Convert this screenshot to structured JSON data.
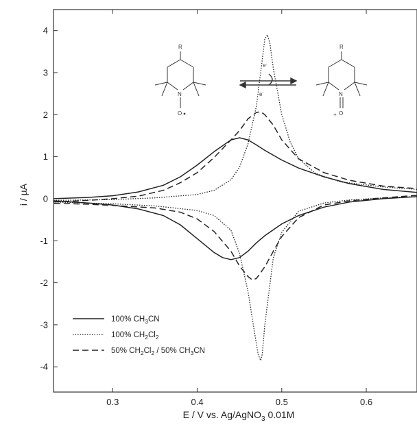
{
  "chart_data": {
    "type": "line",
    "xlabel": "E / V vs. Ag/AgNO3 0.01M",
    "ylabel": "i / µA",
    "xlim": [
      0.23,
      0.66
    ],
    "ylim": [
      -4.6,
      4.5
    ],
    "xticks": [
      0.3,
      0.4,
      0.5,
      0.6
    ],
    "xtick_labels": [
      "0.3",
      "0.4",
      "0.5",
      "0.6"
    ],
    "yticks": [
      -4,
      -3,
      -2,
      -1,
      0,
      1,
      2,
      3,
      4
    ],
    "ytick_labels": [
      "-4",
      "-3",
      "-2",
      "-1",
      "0",
      "1",
      "2",
      "3",
      "4"
    ],
    "legend_position": "bottom-left",
    "grid": false,
    "series": [
      {
        "name": "100% CH3CN",
        "line_style": "solid",
        "forward": [
          [
            0.23,
            0.0
          ],
          [
            0.27,
            0.03
          ],
          [
            0.3,
            0.07
          ],
          [
            0.33,
            0.16
          ],
          [
            0.36,
            0.32
          ],
          [
            0.38,
            0.52
          ],
          [
            0.4,
            0.8
          ],
          [
            0.42,
            1.12
          ],
          [
            0.44,
            1.4
          ],
          [
            0.45,
            1.45
          ],
          [
            0.46,
            1.4
          ],
          [
            0.47,
            1.28
          ],
          [
            0.48,
            1.15
          ],
          [
            0.5,
            0.92
          ],
          [
            0.52,
            0.73
          ],
          [
            0.55,
            0.52
          ],
          [
            0.58,
            0.36
          ],
          [
            0.62,
            0.22
          ],
          [
            0.66,
            0.15
          ]
        ],
        "reverse": [
          [
            0.66,
            0.05
          ],
          [
            0.62,
            0.0
          ],
          [
            0.58,
            -0.08
          ],
          [
            0.55,
            -0.2
          ],
          [
            0.52,
            -0.4
          ],
          [
            0.5,
            -0.6
          ],
          [
            0.48,
            -0.88
          ],
          [
            0.47,
            -1.05
          ],
          [
            0.46,
            -1.25
          ],
          [
            0.45,
            -1.4
          ],
          [
            0.44,
            -1.45
          ],
          [
            0.43,
            -1.4
          ],
          [
            0.42,
            -1.28
          ],
          [
            0.4,
            -0.95
          ],
          [
            0.38,
            -0.62
          ],
          [
            0.36,
            -0.4
          ],
          [
            0.33,
            -0.24
          ],
          [
            0.3,
            -0.15
          ],
          [
            0.27,
            -0.1
          ],
          [
            0.23,
            -0.05
          ]
        ]
      },
      {
        "name": "100% CH2Cl2",
        "line_style": "dotted",
        "forward": [
          [
            0.23,
            -0.04
          ],
          [
            0.3,
            -0.02
          ],
          [
            0.35,
            0.02
          ],
          [
            0.4,
            0.1
          ],
          [
            0.42,
            0.2
          ],
          [
            0.44,
            0.45
          ],
          [
            0.45,
            0.75
          ],
          [
            0.46,
            1.3
          ],
          [
            0.47,
            2.2
          ],
          [
            0.475,
            3.0
          ],
          [
            0.48,
            3.8
          ],
          [
            0.483,
            3.9
          ],
          [
            0.486,
            3.7
          ],
          [
            0.49,
            3.1
          ],
          [
            0.5,
            2.0
          ],
          [
            0.51,
            1.35
          ],
          [
            0.52,
            0.95
          ],
          [
            0.54,
            0.6
          ],
          [
            0.57,
            0.4
          ],
          [
            0.62,
            0.28
          ],
          [
            0.66,
            0.22
          ]
        ],
        "reverse": [
          [
            0.66,
            0.05
          ],
          [
            0.62,
            0.02
          ],
          [
            0.58,
            -0.03
          ],
          [
            0.55,
            -0.1
          ],
          [
            0.52,
            -0.3
          ],
          [
            0.5,
            -0.8
          ],
          [
            0.49,
            -1.4
          ],
          [
            0.485,
            -2.2
          ],
          [
            0.48,
            -3.0
          ],
          [
            0.477,
            -3.7
          ],
          [
            0.475,
            -3.85
          ],
          [
            0.472,
            -3.7
          ],
          [
            0.468,
            -3.2
          ],
          [
            0.46,
            -2.2
          ],
          [
            0.45,
            -1.3
          ],
          [
            0.44,
            -0.75
          ],
          [
            0.42,
            -0.4
          ],
          [
            0.4,
            -0.28
          ],
          [
            0.35,
            -0.17
          ],
          [
            0.3,
            -0.12
          ],
          [
            0.23,
            -0.08
          ]
        ]
      },
      {
        "name": "50% CH2Cl2 / 50% CH3CN",
        "line_style": "dashed",
        "forward": [
          [
            0.23,
            -0.08
          ],
          [
            0.27,
            -0.04
          ],
          [
            0.3,
            0.0
          ],
          [
            0.33,
            0.06
          ],
          [
            0.36,
            0.2
          ],
          [
            0.38,
            0.38
          ],
          [
            0.4,
            0.62
          ],
          [
            0.42,
            0.98
          ],
          [
            0.44,
            1.4
          ],
          [
            0.45,
            1.62
          ],
          [
            0.46,
            1.9
          ],
          [
            0.47,
            2.05
          ],
          [
            0.475,
            2.07
          ],
          [
            0.48,
            2.0
          ],
          [
            0.49,
            1.75
          ],
          [
            0.5,
            1.4
          ],
          [
            0.52,
            0.95
          ],
          [
            0.55,
            0.62
          ],
          [
            0.58,
            0.44
          ],
          [
            0.62,
            0.3
          ],
          [
            0.66,
            0.24
          ]
        ],
        "reverse": [
          [
            0.66,
            0.08
          ],
          [
            0.62,
            0.02
          ],
          [
            0.58,
            -0.05
          ],
          [
            0.55,
            -0.15
          ],
          [
            0.52,
            -0.45
          ],
          [
            0.5,
            -0.9
          ],
          [
            0.49,
            -1.25
          ],
          [
            0.48,
            -1.62
          ],
          [
            0.47,
            -1.9
          ],
          [
            0.465,
            -1.93
          ],
          [
            0.46,
            -1.85
          ],
          [
            0.45,
            -1.6
          ],
          [
            0.44,
            -1.25
          ],
          [
            0.42,
            -0.78
          ],
          [
            0.4,
            -0.48
          ],
          [
            0.38,
            -0.32
          ],
          [
            0.35,
            -0.22
          ],
          [
            0.3,
            -0.16
          ],
          [
            0.27,
            -0.13
          ],
          [
            0.23,
            -0.11
          ]
        ]
      }
    ],
    "legend": [
      {
        "style": "solid",
        "prefix": "100% CH",
        "sub1": "3",
        "mid": "CN",
        "sub2": "",
        "tail": ""
      },
      {
        "style": "dotted",
        "prefix": "100% CH",
        "sub1": "2",
        "mid": "Cl",
        "sub2": "2",
        "tail": ""
      },
      {
        "style": "dashed",
        "prefix": "50% CH",
        "sub1": "2",
        "mid": "Cl",
        "sub2": "2",
        "tail": " / 50% CH3CN"
      }
    ],
    "xlabel_parts": {
      "prefix": "E / V vs. Ag/AgNO",
      "sub": "3",
      "suffix": " 0.01M"
    },
    "inset": {
      "left_labels": {
        "r": "R",
        "n": "N",
        "o": "O"
      },
      "right_labels": {
        "r": "R",
        "n": "N",
        "o": "O",
        "plus": "+"
      },
      "electron_label": "e",
      "electron_sup": "-"
    },
    "colors": {
      "line": "#222222",
      "axis": "#333333",
      "background": "#ffffff"
    }
  }
}
